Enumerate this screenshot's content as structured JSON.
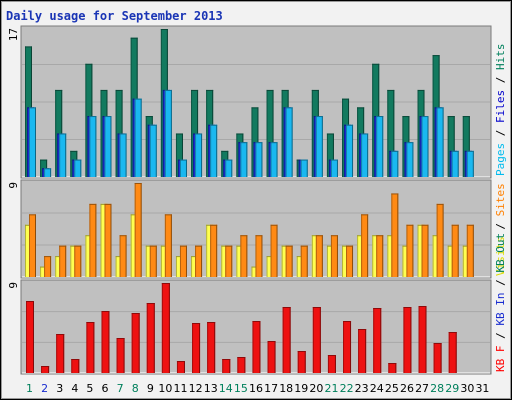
{
  "title": "Daily usage for September 2013",
  "chart_data": [
    {
      "type": "bar",
      "panel": "top",
      "ymax_label": "17",
      "ymax": 17,
      "right_label": [
        {
          "text": "Pages",
          "color": "#00bbee"
        },
        {
          "text": " / ",
          "color": "#000000"
        },
        {
          "text": "Files",
          "color": "#0000cc"
        },
        {
          "text": " / ",
          "color": "#000000"
        },
        {
          "text": "Hits",
          "color": "#00805c"
        }
      ],
      "categories": [
        "1",
        "2",
        "3",
        "4",
        "5",
        "6",
        "7",
        "8",
        "9",
        "10",
        "11",
        "12",
        "13",
        "14",
        "15",
        "16",
        "17",
        "18",
        "19",
        "20",
        "21",
        "22",
        "23",
        "24",
        "25",
        "26",
        "27",
        "28",
        "29",
        "30",
        "31"
      ],
      "series": [
        {
          "name": "Hits",
          "color": "#127a5f",
          "values": [
            15,
            2,
            10,
            3,
            13,
            10,
            10,
            16,
            7,
            17,
            5,
            10,
            10,
            3,
            5,
            8,
            10,
            10,
            2,
            10,
            5,
            9,
            8,
            13,
            10,
            7,
            10,
            14,
            7,
            7,
            0
          ]
        },
        {
          "name": "Files",
          "color": "#1a2dd0",
          "values": [
            8,
            1,
            5,
            2,
            7,
            7,
            5,
            9,
            6,
            10,
            2,
            5,
            6,
            2,
            4,
            4,
            4,
            8,
            2,
            7,
            2,
            6,
            5,
            7,
            3,
            4,
            7,
            8,
            3,
            3,
            0
          ]
        },
        {
          "name": "Pages",
          "color": "#1ab8f0",
          "values": [
            8,
            1,
            5,
            2,
            7,
            7,
            5,
            9,
            6,
            10,
            2,
            5,
            6,
            2,
            4,
            4,
            4,
            8,
            2,
            7,
            2,
            6,
            5,
            7,
            3,
            4,
            7,
            8,
            3,
            3,
            0
          ]
        }
      ]
    },
    {
      "type": "bar",
      "panel": "middle",
      "ymax_label": "9",
      "ymax": 9,
      "right_label": [
        {
          "text": "Visits",
          "color": "#dddd00"
        },
        {
          "text": " / ",
          "color": "#000000"
        },
        {
          "text": "Sites",
          "color": "#ff8000"
        }
      ],
      "categories": [
        "1",
        "2",
        "3",
        "4",
        "5",
        "6",
        "7",
        "8",
        "9",
        "10",
        "11",
        "12",
        "13",
        "14",
        "15",
        "16",
        "17",
        "18",
        "19",
        "20",
        "21",
        "22",
        "23",
        "24",
        "25",
        "26",
        "27",
        "28",
        "29",
        "30",
        "31"
      ],
      "series": [
        {
          "name": "Visits",
          "color": "#ffff50",
          "values": [
            5,
            1,
            2,
            3,
            4,
            7,
            2,
            6,
            3,
            3,
            2,
            2,
            5,
            3,
            3,
            1,
            2,
            3,
            2,
            4,
            3,
            3,
            4,
            4,
            4,
            3,
            5,
            4,
            3,
            3,
            0
          ]
        },
        {
          "name": "Sites",
          "color": "#ff8a14",
          "values": [
            6,
            2,
            3,
            3,
            7,
            7,
            4,
            9,
            3,
            6,
            3,
            3,
            5,
            3,
            4,
            4,
            5,
            3,
            3,
            4,
            4,
            3,
            6,
            4,
            8,
            5,
            5,
            7,
            5,
            5,
            0
          ]
        }
      ]
    },
    {
      "type": "bar",
      "panel": "bottom",
      "ymax_label": "9",
      "ymax": 9,
      "right_label": [
        {
          "text": "KB F",
          "color": "#ff0000"
        },
        {
          "text": " / ",
          "color": "#000000"
        },
        {
          "text": "KB In",
          "color": "#1a2dd0"
        },
        {
          "text": " / ",
          "color": "#000000"
        },
        {
          "text": "KB Out",
          "color": "#00805c"
        }
      ],
      "categories": [
        "1",
        "2",
        "3",
        "4",
        "5",
        "6",
        "7",
        "8",
        "9",
        "10",
        "11",
        "12",
        "13",
        "14",
        "15",
        "16",
        "17",
        "18",
        "19",
        "20",
        "21",
        "22",
        "23",
        "24",
        "25",
        "26",
        "27",
        "28",
        "29",
        "30",
        "31"
      ],
      "series": [
        {
          "name": "KB F",
          "color": "#ee1111",
          "values": [
            7.2,
            0.7,
            3.9,
            1.4,
            5.1,
            6.2,
            3.5,
            6.0,
            7.0,
            9.0,
            1.2,
            5.0,
            5.1,
            1.4,
            1.6,
            5.2,
            3.2,
            6.6,
            2.2,
            6.6,
            1.8,
            5.2,
            4.4,
            6.5,
            1.0,
            6.6,
            6.7,
            3.0,
            4.1,
            0,
            0
          ]
        }
      ]
    }
  ],
  "xlabels": [
    {
      "t": "1",
      "c": "#00805c"
    },
    {
      "t": "2",
      "c": "#1a2dd0"
    },
    {
      "t": "3",
      "c": "#000000"
    },
    {
      "t": "4",
      "c": "#000000"
    },
    {
      "t": "5",
      "c": "#000000"
    },
    {
      "t": "6",
      "c": "#000000"
    },
    {
      "t": "7",
      "c": "#00805c"
    },
    {
      "t": "8",
      "c": "#00805c"
    },
    {
      "t": "9",
      "c": "#000000"
    },
    {
      "t": "10",
      "c": "#000000"
    },
    {
      "t": "11",
      "c": "#000000"
    },
    {
      "t": "12",
      "c": "#000000"
    },
    {
      "t": "13",
      "c": "#000000"
    },
    {
      "t": "14",
      "c": "#00805c"
    },
    {
      "t": "15",
      "c": "#00805c"
    },
    {
      "t": "16",
      "c": "#000000"
    },
    {
      "t": "17",
      "c": "#000000"
    },
    {
      "t": "18",
      "c": "#000000"
    },
    {
      "t": "19",
      "c": "#000000"
    },
    {
      "t": "20",
      "c": "#000000"
    },
    {
      "t": "21",
      "c": "#00805c"
    },
    {
      "t": "22",
      "c": "#00805c"
    },
    {
      "t": "23",
      "c": "#000000"
    },
    {
      "t": "24",
      "c": "#000000"
    },
    {
      "t": "25",
      "c": "#000000"
    },
    {
      "t": "26",
      "c": "#000000"
    },
    {
      "t": "27",
      "c": "#000000"
    },
    {
      "t": "28",
      "c": "#00805c"
    },
    {
      "t": "29",
      "c": "#00805c"
    },
    {
      "t": "30",
      "c": "#000000"
    },
    {
      "t": "31",
      "c": "#000000"
    }
  ]
}
